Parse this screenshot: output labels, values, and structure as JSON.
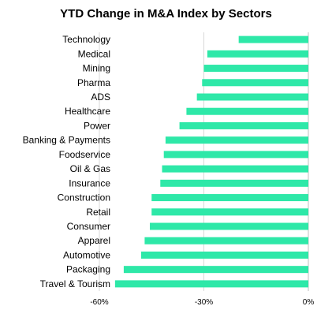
{
  "chart_data": {
    "type": "bar",
    "orientation": "horizontal",
    "title": "YTD Change in M&A Index by Sectors",
    "xlabel": "",
    "ylabel": "",
    "categories": [
      "Technology",
      "Medical",
      "Mining",
      "Pharma",
      "ADS",
      "Healthcare",
      "Power",
      "Banking & Payments",
      "Foodservice",
      "Oil & Gas",
      "Insurance",
      "Construction",
      "Retail",
      "Consumer",
      "Apparel",
      "Automotive",
      "Packaging",
      "Travel & Tourism"
    ],
    "values": [
      -20,
      -29,
      -30,
      -30.5,
      -32,
      -35,
      -37,
      -41,
      -41.5,
      -42,
      -42.5,
      -45,
      -45,
      -45.5,
      -47,
      -48,
      -53,
      -55.5
    ],
    "xlim": [
      -60,
      0
    ],
    "xticks": [
      -60,
      -30,
      0
    ],
    "xtick_labels": [
      "-60%",
      "-30%",
      "0%"
    ],
    "grid": true,
    "legend": "none",
    "bar_color": "#2ee8a8"
  }
}
